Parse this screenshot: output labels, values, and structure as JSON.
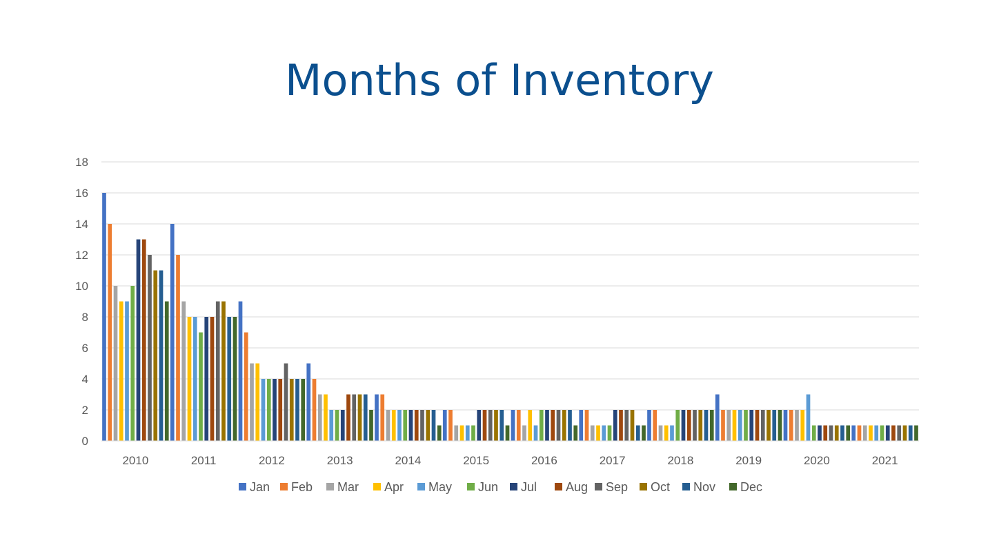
{
  "title": "Months of Inventory",
  "chart_data": {
    "type": "bar",
    "title": "Months of Inventory",
    "xlabel": "",
    "ylabel": "",
    "ylim": [
      0,
      18
    ],
    "yticks": [
      0,
      2,
      4,
      6,
      8,
      10,
      12,
      14,
      16,
      18
    ],
    "grid": true,
    "legend_position": "bottom",
    "categories": [
      "2010",
      "2011",
      "2012",
      "2013",
      "2014",
      "2015",
      "2016",
      "2017",
      "2018",
      "2019",
      "2020",
      "2021"
    ],
    "series": [
      {
        "name": "Jan",
        "color": "#4472c4",
        "values": [
          16,
          14,
          9,
          5,
          3,
          2,
          2,
          2,
          2,
          3,
          2,
          1
        ]
      },
      {
        "name": "Feb",
        "color": "#ed7d31",
        "values": [
          14,
          12,
          7,
          4,
          3,
          2,
          2,
          2,
          2,
          2,
          2,
          1
        ]
      },
      {
        "name": "Mar",
        "color": "#a5a5a5",
        "values": [
          10,
          9,
          5,
          3,
          2,
          1,
          1,
          1,
          1,
          2,
          2,
          1
        ]
      },
      {
        "name": "Apr",
        "color": "#ffc000",
        "values": [
          9,
          8,
          5,
          3,
          2,
          1,
          2,
          1,
          1,
          2,
          2,
          1
        ]
      },
      {
        "name": "May",
        "color": "#5b9bd5",
        "values": [
          9,
          8,
          4,
          2,
          2,
          1,
          1,
          1,
          1,
          2,
          3,
          1
        ]
      },
      {
        "name": "Jun",
        "color": "#70ad47",
        "values": [
          10,
          7,
          4,
          2,
          2,
          1,
          2,
          1,
          2,
          2,
          1,
          1
        ]
      },
      {
        "name": "Jul",
        "color": "#264478",
        "values": [
          13,
          8,
          4,
          2,
          2,
          2,
          2,
          2,
          2,
          2,
          1,
          1
        ]
      },
      {
        "name": "Aug",
        "color": "#9e480e",
        "values": [
          13,
          8,
          4,
          3,
          2,
          2,
          2,
          2,
          2,
          2,
          1,
          1
        ]
      },
      {
        "name": "Sep",
        "color": "#636363",
        "values": [
          12,
          9,
          5,
          3,
          2,
          2,
          2,
          2,
          2,
          2,
          1,
          1
        ]
      },
      {
        "name": "Oct",
        "color": "#997300",
        "values": [
          11,
          9,
          4,
          3,
          2,
          2,
          2,
          2,
          2,
          2,
          1,
          1
        ]
      },
      {
        "name": "Nov",
        "color": "#255e91",
        "values": [
          11,
          8,
          4,
          3,
          2,
          2,
          2,
          1,
          2,
          2,
          1,
          1
        ]
      },
      {
        "name": "Dec",
        "color": "#43682b",
        "values": [
          9,
          8,
          4,
          2,
          1,
          1,
          1,
          1,
          2,
          2,
          1,
          1
        ]
      }
    ]
  }
}
